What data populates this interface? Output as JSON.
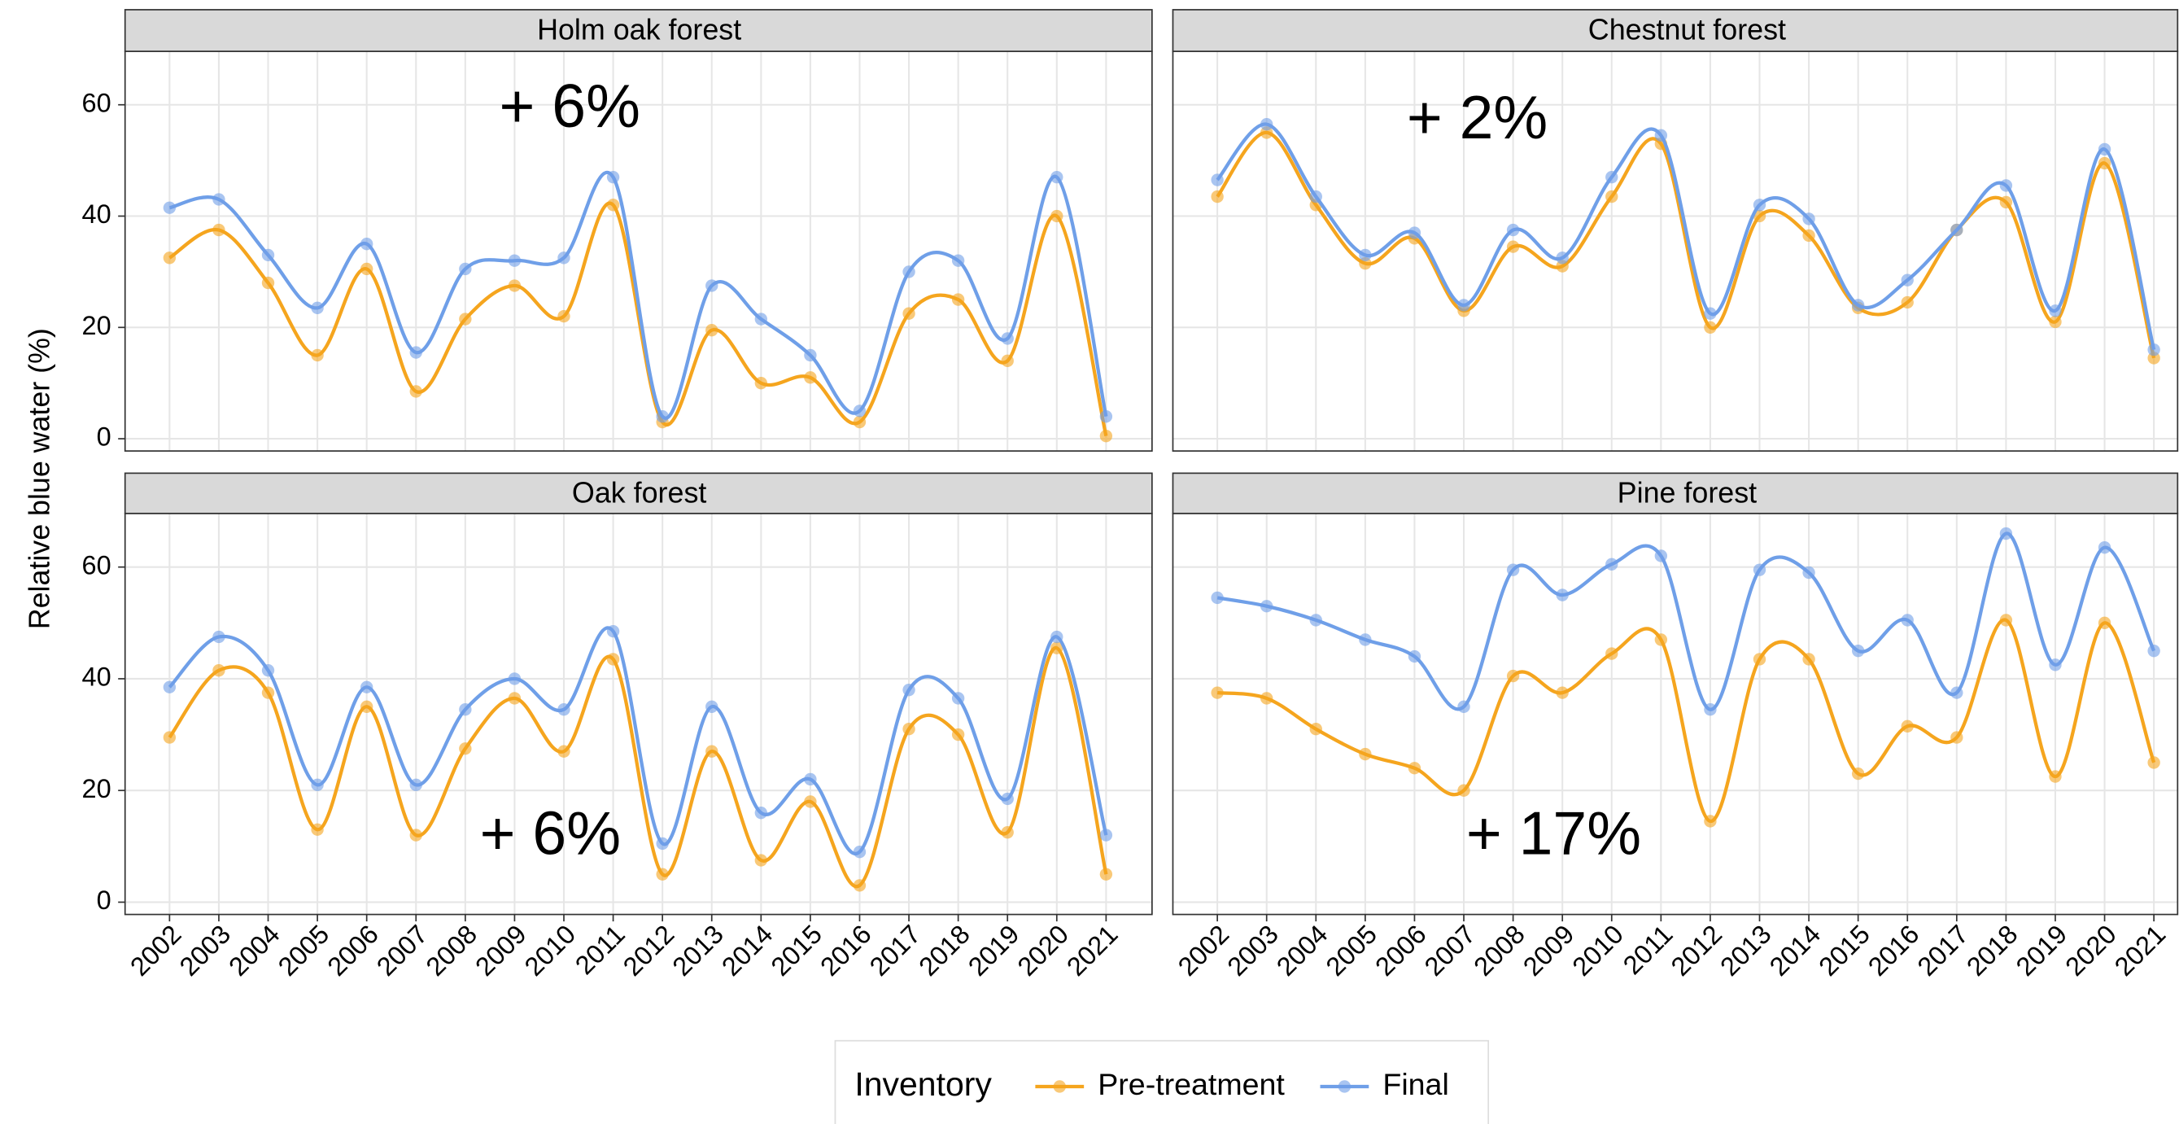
{
  "chart_data": {
    "type": "line",
    "y_label": "Relative blue water (%)",
    "legend_title": "Inventory",
    "categories": [
      "2002",
      "2003",
      "2004",
      "2005",
      "2006",
      "2007",
      "2008",
      "2009",
      "2010",
      "2011",
      "2012",
      "2013",
      "2014",
      "2015",
      "2016",
      "2017",
      "2018",
      "2019",
      "2020",
      "2021"
    ],
    "ylim": [
      -2.2,
      69.6
    ],
    "yticks": [
      0,
      20,
      40,
      60
    ],
    "grid": true,
    "legend": "bottom",
    "series": [
      {
        "name": "Pre-treatment",
        "color": "#f5a51e"
      },
      {
        "name": "Final",
        "color": "#6f9fe8"
      }
    ],
    "panels": [
      {
        "title": "Holm oak forest",
        "annotation": "+ 6%",
        "values": [
          [
            32.5,
            37.5,
            28,
            15,
            30.5,
            8.5,
            21.5,
            27.5,
            22,
            42,
            3,
            19.5,
            10,
            11,
            3,
            22.5,
            25,
            14,
            40,
            0.5
          ],
          [
            41.5,
            43,
            33,
            23.5,
            35,
            15.5,
            30.5,
            32,
            32.5,
            47,
            4,
            27.5,
            21.5,
            15,
            5,
            30,
            32,
            18,
            47,
            4
          ]
        ]
      },
      {
        "title": "Chestnut forest",
        "annotation": "+ 2%",
        "values": [
          [
            43.5,
            55,
            42,
            31.5,
            36,
            23,
            34.5,
            31,
            43.5,
            53,
            20,
            40,
            36.5,
            23.5,
            24.5,
            37.5,
            42.5,
            21,
            49.5,
            14.5
          ],
          [
            46.5,
            56.5,
            43.5,
            33,
            37,
            24,
            37.5,
            32.5,
            47,
            54.5,
            22.5,
            42,
            39.5,
            24,
            28.5,
            37.5,
            45.5,
            23,
            52,
            16
          ]
        ]
      },
      {
        "title": "Oak forest",
        "annotation": "+ 6%",
        "values": [
          [
            29.5,
            41.5,
            37.5,
            13,
            35,
            12,
            27.5,
            36.5,
            27,
            43.5,
            5,
            27,
            7.5,
            18,
            3,
            31,
            30,
            12.5,
            45.5,
            5
          ],
          [
            38.5,
            47.5,
            41.5,
            21,
            38.5,
            21,
            34.5,
            40,
            34.5,
            48.5,
            10.5,
            35,
            16,
            22,
            9,
            38,
            36.5,
            18.5,
            47.5,
            12
          ]
        ]
      },
      {
        "title": "Pine forest",
        "annotation": "+ 17%",
        "values": [
          [
            37.5,
            36.5,
            31,
            26.5,
            24,
            20,
            40.5,
            37.5,
            44.5,
            47,
            14.5,
            43.5,
            43.5,
            23,
            31.5,
            29.5,
            50.5,
            22.5,
            50,
            25
          ],
          [
            54.5,
            53,
            50.5,
            47,
            44,
            35,
            59.5,
            55,
            60.5,
            62,
            34.5,
            59.5,
            59,
            45,
            50.5,
            37.5,
            66,
            42.5,
            63.5,
            45
          ]
        ]
      }
    ]
  }
}
